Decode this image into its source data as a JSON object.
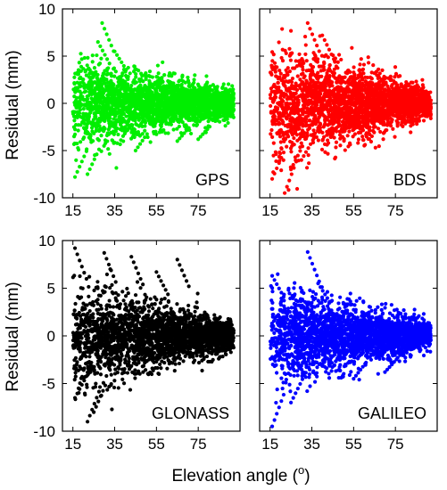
{
  "figure": {
    "ylabel": "Residual (mm)",
    "xlabel_main": "Elevation angle (",
    "xlabel_sup": "o",
    "xlabel_close": ")"
  },
  "chart_data": [
    {
      "type": "scatter",
      "panel_label": "GPS",
      "color": "#00ee00",
      "xlim": [
        10,
        95
      ],
      "ylim": [
        -10,
        10
      ],
      "xticks": [
        "15",
        "35",
        "55",
        "75"
      ],
      "yticks": [
        "10",
        "5",
        "0",
        "-5",
        "-10"
      ],
      "grid": false,
      "summary": {
        "elev_min": 15,
        "elev_max": 92,
        "residual_max": 8.5,
        "residual_min": -7.8,
        "spread_low_elev": 5,
        "spread_high_elev": 1.5
      },
      "outliers": [
        [
          29,
          8.5
        ],
        [
          27,
          6.5
        ],
        [
          35,
          5.5
        ],
        [
          16,
          -7.8
        ],
        [
          22,
          -7.5
        ],
        [
          45,
          -5
        ],
        [
          65,
          -4
        ],
        [
          75,
          -3.8
        ]
      ]
    },
    {
      "type": "scatter",
      "panel_label": "BDS",
      "color": "#ff0000",
      "xlim": [
        10,
        95
      ],
      "ylim": [
        -10,
        10
      ],
      "xticks": [
        "15",
        "35",
        "55",
        "75"
      ],
      "yticks": [
        "10",
        "5",
        "0",
        "-5",
        "-10"
      ],
      "grid": false,
      "summary": {
        "elev_min": 15,
        "elev_max": 92,
        "residual_max": 8.5,
        "residual_min": -9.7,
        "spread_low_elev": 7,
        "spread_high_elev": 1.5
      },
      "outliers": [
        [
          33,
          8.5
        ],
        [
          40,
          7.2
        ],
        [
          16,
          -8
        ],
        [
          22,
          -9.5
        ],
        [
          25,
          -7
        ],
        [
          30,
          -6
        ],
        [
          65,
          3.2
        ]
      ]
    },
    {
      "type": "scatter",
      "panel_label": "GLONASS",
      "color": "#000000",
      "xlim": [
        10,
        95
      ],
      "ylim": [
        -10,
        10
      ],
      "xticks": [
        "15",
        "35",
        "55",
        "75"
      ],
      "yticks": [
        "10",
        "5",
        "0",
        "-5",
        "-10"
      ],
      "grid": false,
      "summary": {
        "elev_min": 15,
        "elev_max": 92,
        "residual_max": 9.2,
        "residual_min": -9.2,
        "spread_low_elev": 6,
        "spread_high_elev": 1.5
      },
      "outliers": [
        [
          16,
          9.2
        ],
        [
          30,
          8.7
        ],
        [
          43,
          8.3
        ],
        [
          55,
          6.7
        ],
        [
          65,
          8
        ],
        [
          16,
          -6.5
        ],
        [
          22,
          -9
        ],
        [
          25,
          -8
        ]
      ]
    },
    {
      "type": "scatter",
      "panel_label": "GALILEO",
      "color": "#0000ff",
      "xlim": [
        10,
        95
      ],
      "ylim": [
        -10,
        10
      ],
      "xticks": [
        "15",
        "35",
        "55",
        "75"
      ],
      "yticks": [
        "10",
        "5",
        "0",
        "-5",
        "-10"
      ],
      "grid": false,
      "summary": {
        "elev_min": 15,
        "elev_max": 92,
        "residual_max": 8.8,
        "residual_min": -9.8,
        "spread_low_elev": 5.5,
        "spread_high_elev": 1.5
      },
      "outliers": [
        [
          16,
          6.3
        ],
        [
          33,
          8.8
        ],
        [
          38,
          5.5
        ],
        [
          16,
          -9.5
        ],
        [
          25,
          -7
        ],
        [
          55,
          -4.5
        ],
        [
          70,
          -3.8
        ]
      ]
    }
  ]
}
